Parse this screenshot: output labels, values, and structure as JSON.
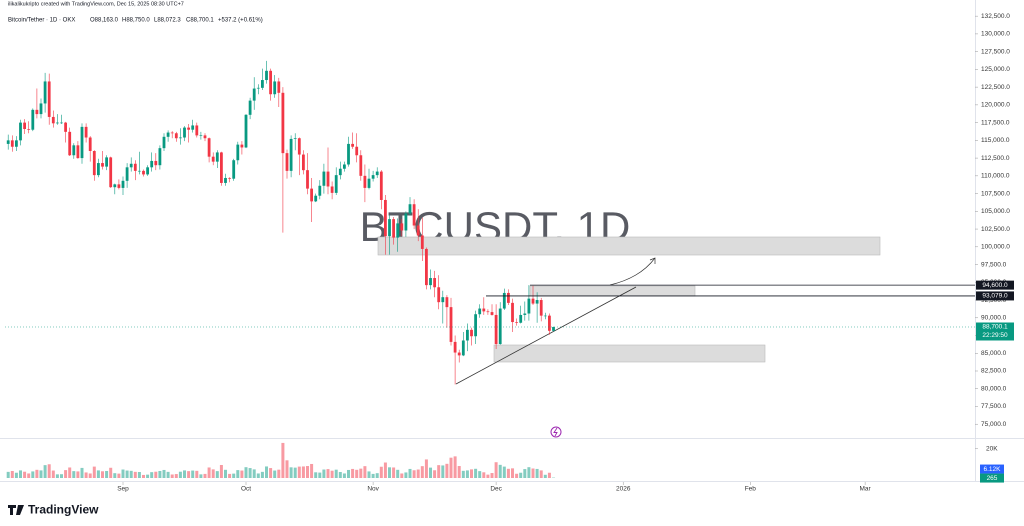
{
  "header": "ilikalikukripto created with TradingView.com, Dec 15, 2025 08:30 UTC+7",
  "footer_logo": "TradingView",
  "chart_data": {
    "type": "candlestick",
    "title": "Bitcoin/Tether · 1D · OKX",
    "watermark": "BTCUSDT, 1D",
    "ohlc_legend": [
      "O88,163.0",
      "H88,750.0",
      "L88,072.3",
      "C88,700.1",
      "+537.2 (+0.61%)"
    ],
    "up_color": "#089981",
    "down_color": "#f23645",
    "grid": false,
    "open": [
      114500,
      115000,
      114100,
      115000,
      117500,
      116600,
      116500,
      119300,
      118700,
      120200,
      123300,
      118300,
      117400,
      117500,
      117500,
      116200,
      112900,
      114300,
      112500,
      116900,
      115400,
      113500,
      110100,
      111800,
      111300,
      112600,
      108400,
      108800,
      108300,
      109300,
      111200,
      111700,
      110700,
      110700,
      110200,
      111200,
      112100,
      111500,
      113900,
      115500,
      116100,
      116000,
      115300,
      115400,
      116800,
      116500,
      117100,
      115700,
      115700,
      115300,
      112700,
      112000,
      113300,
      109000,
      109700,
      109600,
      112200,
      114400,
      114000,
      118600,
      120600,
      122300,
      122400,
      123500,
      124800,
      121500,
      123300,
      121700,
      113200,
      110700,
      115200,
      115300,
      113000,
      110800,
      108200,
      106400,
      107200,
      108600,
      110600,
      108500,
      107600,
      110100,
      111000,
      111600,
      114500,
      114100,
      112900,
      110000,
      108300,
      109600,
      110100,
      110600,
      106600,
      101500,
      103900,
      101300,
      103300,
      102300,
      104700,
      106000,
      103000,
      101600,
      99700,
      94600,
      95600,
      94300,
      92200,
      92900,
      91500,
      86600,
      85100,
      84700,
      86800,
      88300,
      87400,
      90500,
      91300,
      90900,
      90800,
      90400,
      86300,
      91300,
      93500,
      92100,
      89400,
      89300,
      90400,
      90600,
      92700,
      92000,
      92500,
      90300,
      90300,
      88163
    ],
    "high": [
      115800,
      115700,
      115600,
      117900,
      118000,
      117700,
      119500,
      122300,
      120900,
      124500,
      124400,
      119200,
      118700,
      118600,
      117600,
      116800,
      114600,
      114900,
      117400,
      117400,
      115600,
      113600,
      112400,
      113500,
      112900,
      112700,
      108900,
      109500,
      109900,
      111800,
      112600,
      112200,
      113400,
      110900,
      111500,
      113300,
      113200,
      114300,
      116000,
      116400,
      116300,
      116200,
      116700,
      117000,
      117300,
      117900,
      117500,
      116200,
      116000,
      115400,
      113300,
      113600,
      113400,
      110300,
      109800,
      112400,
      114800,
      114900,
      118700,
      121000,
      123900,
      122900,
      125100,
      126200,
      125100,
      124200,
      123800,
      122500,
      113700,
      115700,
      116000,
      115400,
      113600,
      113200,
      109700,
      107500,
      109400,
      111700,
      114000,
      109200,
      111200,
      112000,
      112000,
      115500,
      116100,
      116000,
      113600,
      111600,
      111000,
      110700,
      111200,
      110800,
      107300,
      104500,
      104200,
      104000,
      103900,
      105000,
      107000,
      106700,
      105300,
      104100,
      99900,
      96800,
      96600,
      96000,
      93800,
      93200,
      92800,
      87500,
      85500,
      88000,
      89200,
      88600,
      91000,
      91900,
      92900,
      91200,
      91900,
      91900,
      92200,
      94100,
      94000,
      92700,
      89900,
      91700,
      92300,
      94600,
      94500,
      93600,
      92800,
      90700,
      90600,
      88750
    ],
    "low": [
      113700,
      113400,
      113500,
      114300,
      115900,
      116000,
      116300,
      118100,
      118100,
      118900,
      117200,
      116800,
      117200,
      117300,
      114700,
      112800,
      112400,
      112400,
      111700,
      114700,
      112000,
      109300,
      109800,
      110900,
      110800,
      108300,
      107400,
      108100,
      107300,
      108300,
      110600,
      109400,
      110200,
      109900,
      110000,
      110600,
      110800,
      110900,
      113500,
      114800,
      115300,
      114800,
      114400,
      114900,
      114700,
      116100,
      115400,
      115100,
      114900,
      111900,
      111500,
      111100,
      108600,
      108600,
      109100,
      109300,
      111600,
      113000,
      113900,
      118000,
      119300,
      121500,
      122100,
      123000,
      120600,
      121000,
      119700,
      102000,
      109600,
      109800,
      113600,
      110100,
      110200,
      107400,
      103500,
      106300,
      106700,
      107500,
      107400,
      106700,
      107300,
      109500,
      110600,
      111300,
      113800,
      111900,
      109300,
      106300,
      108100,
      109200,
      109700,
      105300,
      98900,
      98900,
      100300,
      99300,
      101500,
      101400,
      104400,
      102500,
      100800,
      98000,
      94000,
      94000,
      92900,
      91200,
      89200,
      88600,
      86100,
      80600,
      83700,
      84600,
      85300,
      86100,
      86300,
      90000,
      90400,
      90400,
      90300,
      85600,
      86200,
      91100,
      91800,
      88000,
      88900,
      89200,
      89600,
      89600,
      91800,
      89300,
      89500,
      89800,
      87600,
      88072.3
    ],
    "close": [
      115000,
      114100,
      115000,
      117500,
      116600,
      116500,
      119300,
      118700,
      120200,
      123300,
      118300,
      117400,
      117500,
      117500,
      116200,
      112900,
      114300,
      112500,
      116900,
      115400,
      113500,
      110100,
      111800,
      111300,
      112600,
      108400,
      108800,
      108300,
      109300,
      111200,
      111700,
      110700,
      110700,
      110200,
      111200,
      112100,
      111500,
      113900,
      115500,
      116100,
      116000,
      115300,
      115400,
      116800,
      116500,
      117100,
      115700,
      115700,
      115300,
      112700,
      112000,
      113300,
      109000,
      109700,
      109600,
      112200,
      114400,
      114000,
      118600,
      120600,
      122300,
      122400,
      123500,
      124800,
      121500,
      123300,
      121700,
      113200,
      110700,
      115200,
      115300,
      113000,
      110800,
      108200,
      106400,
      107200,
      108600,
      110600,
      108500,
      107600,
      110100,
      111000,
      111600,
      114500,
      114100,
      112900,
      110000,
      108300,
      109600,
      110100,
      110600,
      106600,
      101500,
      103900,
      101300,
      103300,
      102300,
      104700,
      106000,
      103000,
      101600,
      99700,
      94600,
      95600,
      94300,
      92200,
      92900,
      91500,
      86600,
      85100,
      84700,
      86800,
      88300,
      87400,
      90500,
      91300,
      90900,
      90800,
      90400,
      86300,
      91300,
      93500,
      92100,
      89400,
      89300,
      90400,
      90600,
      92700,
      92000,
      92500,
      90300,
      90300,
      88163,
      88700.1
    ],
    "volume": [
      4200,
      4800,
      3600,
      5200,
      4300,
      3100,
      4500,
      5600,
      5200,
      8800,
      9400,
      5100,
      2500,
      2600,
      5400,
      7200,
      4700,
      4500,
      6900,
      3800,
      3100,
      7800,
      5200,
      4600,
      4800,
      7000,
      3300,
      3000,
      5800,
      5100,
      4900,
      4200,
      4100,
      2100,
      2300,
      4000,
      4300,
      4800,
      5500,
      4200,
      2400,
      2700,
      4300,
      5200,
      4700,
      5100,
      4900,
      2500,
      2800,
      7200,
      5900,
      4700,
      8900,
      5600,
      2800,
      3000,
      5400,
      5100,
      7400,
      6800,
      5900,
      3100,
      4200,
      7900,
      6800,
      5100,
      5700,
      24000,
      12100,
      7300,
      7100,
      7800,
      7900,
      8200,
      9600,
      3900,
      3700,
      5800,
      6100,
      5000,
      5700,
      4100,
      3100,
      5500,
      6200,
      5600,
      6400,
      8100,
      4500,
      2800,
      3300,
      7700,
      10600,
      7300,
      7200,
      5600,
      3100,
      3800,
      6200,
      5300,
      5800,
      8100,
      12700,
      7100,
      5300,
      8800,
      8600,
      9700,
      13900,
      14800,
      8200,
      4900,
      5200,
      5900,
      6300,
      4700,
      3900,
      2300,
      3400,
      10800,
      9000,
      7800,
      6300,
      6600,
      2900,
      3600,
      6100,
      7400,
      6500,
      6200,
      5200,
      2200,
      3600,
      265
    ],
    "xlim": [
      -0.78,
      235.8
    ],
    "xticks": [
      {
        "value": 28,
        "label": "Sep"
      },
      {
        "value": 58,
        "label": "Oct"
      },
      {
        "value": 89,
        "label": "Nov"
      },
      {
        "value": 119,
        "label": "Dec"
      },
      {
        "value": 150,
        "label": "2026"
      },
      {
        "value": 181,
        "label": "Feb"
      },
      {
        "value": 209,
        "label": "Mar"
      }
    ],
    "ylim": [
      73200,
      133650
    ],
    "yticks": [
      {
        "value": 75000,
        "label": "75,000.0"
      },
      {
        "value": 77500,
        "label": "77,500.0"
      },
      {
        "value": 80000,
        "label": "80,000.0"
      },
      {
        "value": 82500,
        "label": "82,500.0"
      },
      {
        "value": 85000,
        "label": "85,000.0"
      },
      {
        "value": 87500,
        "label": "87,500.0"
      },
      {
        "value": 90000,
        "label": "90,000.0"
      },
      {
        "value": 92500,
        "label": "92,500.0"
      },
      {
        "value": 95000,
        "label": "95,000.0"
      },
      {
        "value": 97500,
        "label": "97,500.0"
      },
      {
        "value": 100000,
        "label": "100,000.0"
      },
      {
        "value": 102500,
        "label": "102,500.0"
      },
      {
        "value": 105000,
        "label": "105,000.0"
      },
      {
        "value": 107500,
        "label": "107,500.0"
      },
      {
        "value": 110000,
        "label": "110,000.0"
      },
      {
        "value": 112500,
        "label": "112,500.0"
      },
      {
        "value": 115000,
        "label": "115,000.0"
      },
      {
        "value": 117500,
        "label": "117,500.0"
      },
      {
        "value": 120000,
        "label": "120,000.0"
      },
      {
        "value": 122500,
        "label": "122,500.0"
      },
      {
        "value": 125000,
        "label": "125,000.0"
      },
      {
        "value": 127500,
        "label": "127,500.0"
      },
      {
        "value": 130000,
        "label": "130,000.0"
      },
      {
        "value": 132500,
        "label": "132,500.0"
      }
    ],
    "volume_ylim": [
      0,
      26000
    ],
    "volume_yticks": [
      {
        "value": 20000,
        "label": "20K"
      }
    ],
    "volume_ma_label": {
      "value": 6120,
      "label": "6.12K"
    },
    "price_lines": [
      {
        "value": 94600,
        "label": "94,600.0"
      },
      {
        "value": 93079,
        "label": "93,079.0"
      }
    ],
    "last_price": {
      "value": 88700.1,
      "label": "88,700.1"
    },
    "countdown": "22:29:50"
  }
}
